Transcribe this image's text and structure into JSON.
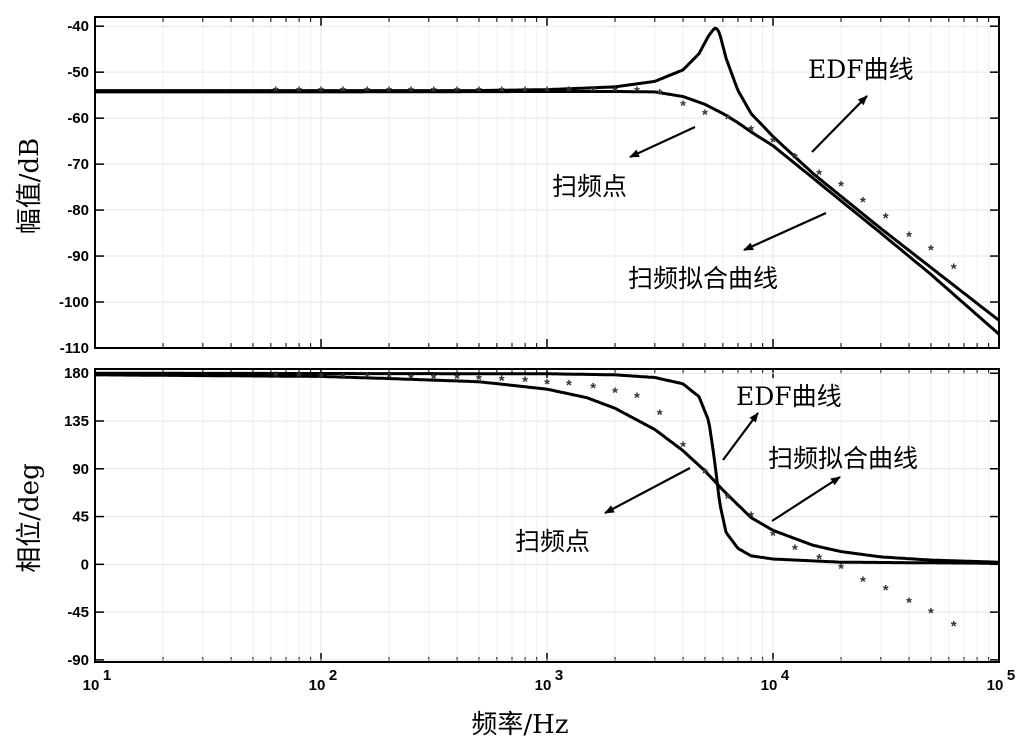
{
  "chart_data": [
    {
      "type": "line",
      "ylabel": "幅值/dB",
      "xlabel": "",
      "xscale": "log",
      "xlim": [
        10,
        100000
      ],
      "ylim": [
        -110,
        -38
      ],
      "yticks": [
        -110,
        -100,
        -90,
        -80,
        -70,
        -60,
        -50,
        -40
      ],
      "grid": true,
      "series": [
        {
          "name": "EDF曲线",
          "style": "solid",
          "x": [
            10,
            100,
            500,
            1000,
            2000,
            3000,
            4000,
            4700,
            5200,
            5500,
            5600,
            5800,
            6200,
            7000,
            8000,
            10000,
            15000,
            20000,
            30000,
            50000,
            100000
          ],
          "y": [
            -54,
            -54,
            -54,
            -53.8,
            -53.2,
            -52,
            -49.5,
            -46,
            -42,
            -40.5,
            -40.3,
            -41.5,
            -47,
            -54,
            -59,
            -64,
            -72,
            -77,
            -84,
            -92.5,
            -104
          ]
        },
        {
          "name": "扫频拟合曲线",
          "style": "solid",
          "x": [
            10,
            100,
            1000,
            2000,
            3000,
            4000,
            5000,
            6000,
            7000,
            8000,
            10000,
            15000,
            20000,
            30000,
            50000,
            100000
          ],
          "y": [
            -54.3,
            -54.3,
            -54.2,
            -54.2,
            -54.3,
            -55.3,
            -57,
            -59,
            -61,
            -63,
            -66,
            -73,
            -78,
            -85,
            -94,
            -107
          ]
        },
        {
          "name": "扫频点",
          "style": "markers",
          "x": [
            63,
            80,
            100,
            125,
            160,
            200,
            250,
            315,
            400,
            500,
            630,
            800,
            1000,
            1250,
            1600,
            2000,
            2500,
            3150,
            4000,
            5000,
            6300,
            8000,
            10000,
            12500,
            16000,
            20000,
            25000,
            31500,
            40000,
            50000,
            63000
          ],
          "y": [
            -54,
            -54,
            -54,
            -54,
            -54,
            -54,
            -54,
            -54,
            -54,
            -54,
            -54,
            -54,
            -54,
            -54,
            -54,
            -54,
            -54,
            -54.5,
            -57,
            -59,
            -60,
            -62.5,
            -65,
            -68.5,
            -72,
            -74.5,
            -78,
            -81.5,
            -85.5,
            -88.5,
            -92.5
          ]
        }
      ],
      "annotations": [
        "EDF曲线",
        "扫频点",
        "扫频拟合曲线"
      ]
    },
    {
      "type": "line",
      "ylabel": "相位/deg",
      "xlabel": "频率/Hz",
      "xscale": "log",
      "xlim": [
        10,
        100000
      ],
      "xticks": [
        "10^1",
        "10^2",
        "10^3",
        "10^4",
        "10^5"
      ],
      "ylim": [
        -92,
        184
      ],
      "yticks": [
        -90,
        -45,
        0,
        45,
        90,
        135,
        180
      ],
      "grid": true,
      "series": [
        {
          "name": "EDF曲线",
          "style": "solid",
          "x": [
            10,
            1000,
            2000,
            3000,
            4000,
            4700,
            5200,
            5500,
            5800,
            6200,
            7000,
            8000,
            10000,
            20000,
            100000
          ],
          "y": [
            180,
            179.5,
            178.5,
            176,
            170,
            158,
            135,
            100,
            58,
            30,
            15,
            8,
            5,
            2,
            1
          ]
        },
        {
          "name": "扫频拟合曲线",
          "style": "solid",
          "x": [
            10,
            100,
            200,
            500,
            1000,
            1500,
            2000,
            3000,
            4000,
            5000,
            6000,
            7000,
            8000,
            10000,
            15000,
            20000,
            30000,
            50000,
            100000
          ],
          "y": [
            178.5,
            177,
            175,
            172,
            165,
            157,
            147,
            127,
            107,
            88,
            70,
            56,
            44,
            32,
            18,
            12,
            7,
            4,
            2
          ]
        },
        {
          "name": "扫频点",
          "style": "markers",
          "x": [
            63,
            80,
            100,
            125,
            160,
            200,
            250,
            315,
            400,
            500,
            630,
            800,
            1000,
            1250,
            1600,
            2000,
            2500,
            3150,
            4000,
            5000,
            6300,
            8000,
            10000,
            12500,
            16000,
            20000,
            25000,
            31500,
            40000,
            50000,
            63000
          ],
          "y": [
            178,
            178,
            177,
            177,
            177,
            177,
            176,
            176,
            176,
            175,
            174,
            173,
            171,
            170,
            167,
            163,
            158,
            142,
            112,
            87,
            63,
            46,
            28,
            15,
            6,
            -3,
            -15,
            -23,
            -35,
            -45,
            -57
          ]
        }
      ],
      "annotations": [
        "EDF曲线",
        "扫频拟合曲线",
        "扫频点"
      ]
    }
  ],
  "labels": {
    "top_ylabel": "幅值/dB",
    "bottom_ylabel": "相位/deg",
    "xlabel": "频率/Hz",
    "annot_edf": "EDF曲线",
    "annot_points": "扫频点",
    "annot_fit": "扫频拟合曲线"
  }
}
